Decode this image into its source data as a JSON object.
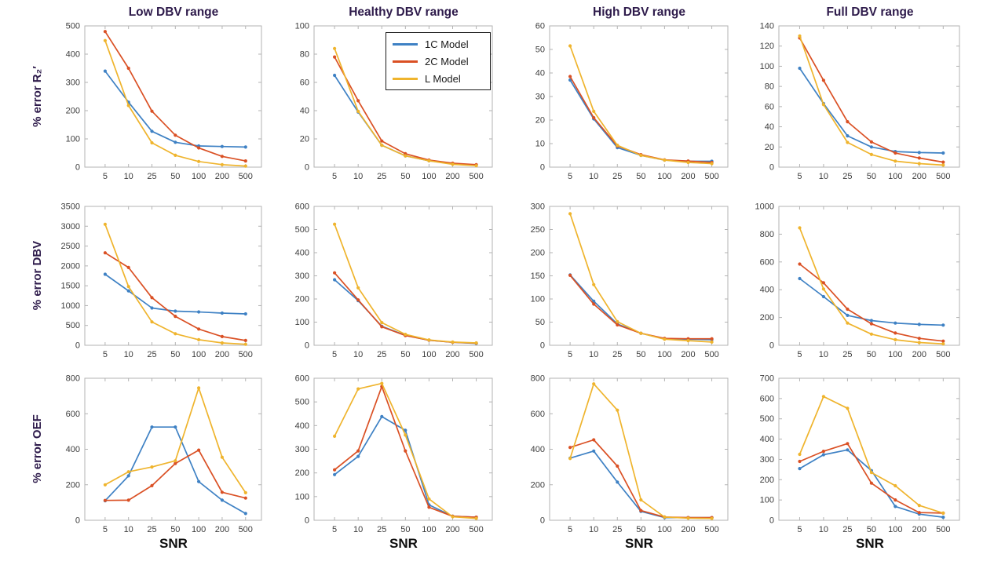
{
  "figure": {
    "background": "#ffffff",
    "title_color": "#2e1b4b",
    "axis_box_color": "#b3b3b3",
    "tick_label_color": "#3d3d3d",
    "xlabel_color": "#0d0d0d"
  },
  "columns": {
    "titles": [
      "Low DBV range",
      "Healthy DBV range",
      "High DBV range",
      "Full DBV range"
    ]
  },
  "rows": {
    "labels": [
      "% error R₂′",
      "% error DBV",
      "% error OEF"
    ]
  },
  "x_axis": {
    "label": "SNR",
    "ticks": [
      5,
      10,
      25,
      50,
      100,
      200,
      500
    ]
  },
  "legend": {
    "items": [
      {
        "label": "1C Model",
        "color": "#3e81c4"
      },
      {
        "label": "2C Model",
        "color": "#da5024"
      },
      {
        "label": "L Model",
        "color": "#efb42d"
      }
    ]
  },
  "chart_data": [
    {
      "type": "line",
      "title": "Low DBV range",
      "ylabel": "% error R₂′",
      "xlabel": "SNR",
      "x": [
        5,
        10,
        25,
        50,
        100,
        200,
        500
      ],
      "ylim": [
        0,
        500
      ],
      "yticks": [
        0,
        100,
        200,
        300,
        400,
        500
      ],
      "series": [
        {
          "name": "1C Model",
          "values": [
            340,
            230,
            127,
            88,
            75,
            73,
            71
          ]
        },
        {
          "name": "2C Model",
          "values": [
            480,
            350,
            198,
            113,
            68,
            38,
            22
          ]
        },
        {
          "name": "L Model",
          "values": [
            448,
            218,
            86,
            42,
            20,
            9,
            4
          ]
        }
      ]
    },
    {
      "type": "line",
      "title": "Healthy DBV range",
      "ylabel": "% error R₂′",
      "xlabel": "SNR",
      "x": [
        5,
        10,
        25,
        50,
        100,
        200,
        500
      ],
      "ylim": [
        0,
        100
      ],
      "yticks": [
        0,
        20,
        40,
        60,
        80,
        100
      ],
      "series": [
        {
          "name": "1C Model",
          "values": [
            65,
            39,
            15.5,
            8,
            4.5,
            2.5,
            1.5
          ]
        },
        {
          "name": "2C Model",
          "values": [
            78,
            47,
            18.5,
            9.5,
            5,
            2.8,
            1.8
          ]
        },
        {
          "name": "L Model",
          "values": [
            84,
            39.5,
            15.5,
            8,
            4.5,
            2,
            1
          ]
        }
      ]
    },
    {
      "type": "line",
      "title": "High DBV range",
      "ylabel": "% error R₂′",
      "xlabel": "SNR",
      "x": [
        5,
        10,
        25,
        50,
        100,
        200,
        500
      ],
      "ylim": [
        0,
        60
      ],
      "yticks": [
        0,
        10,
        20,
        30,
        40,
        50,
        60
      ],
      "series": [
        {
          "name": "1C Model",
          "values": [
            37,
            20.5,
            8.3,
            5,
            3,
            2.5,
            2.5
          ]
        },
        {
          "name": "2C Model",
          "values": [
            38.5,
            21,
            9,
            5.3,
            3.1,
            2.6,
            2
          ]
        },
        {
          "name": "L Model",
          "values": [
            51.5,
            23.7,
            9.3,
            5,
            3,
            2,
            1.5
          ]
        }
      ]
    },
    {
      "type": "line",
      "title": "Full DBV range",
      "ylabel": "% error R₂′",
      "xlabel": "SNR",
      "x": [
        5,
        10,
        25,
        50,
        100,
        200,
        500
      ],
      "ylim": [
        0,
        140
      ],
      "yticks": [
        0,
        20,
        40,
        60,
        80,
        100,
        120,
        140
      ],
      "series": [
        {
          "name": "1C Model",
          "values": [
            98,
            63,
            31,
            20,
            15.5,
            14.5,
            14
          ]
        },
        {
          "name": "2C Model",
          "values": [
            128,
            86,
            45,
            25,
            14,
            9,
            5
          ]
        },
        {
          "name": "L Model",
          "values": [
            130,
            62,
            24.5,
            12.5,
            6,
            3.5,
            2
          ]
        }
      ]
    },
    {
      "type": "line",
      "title": "Low DBV range",
      "ylabel": "% error DBV",
      "xlabel": "SNR",
      "x": [
        5,
        10,
        25,
        50,
        100,
        200,
        500
      ],
      "ylim": [
        0,
        3500
      ],
      "yticks": [
        0,
        500,
        1000,
        1500,
        2000,
        2500,
        3000,
        3500
      ],
      "series": [
        {
          "name": "1C Model",
          "values": [
            1790,
            1370,
            940,
            860,
            840,
            810,
            790
          ]
        },
        {
          "name": "2C Model",
          "values": [
            2330,
            1960,
            1200,
            730,
            410,
            220,
            120
          ]
        },
        {
          "name": "L Model",
          "values": [
            3050,
            1480,
            590,
            290,
            140,
            60,
            25
          ]
        }
      ]
    },
    {
      "type": "line",
      "title": "Healthy DBV range",
      "ylabel": "% error DBV",
      "xlabel": "SNR",
      "x": [
        5,
        10,
        25,
        50,
        100,
        200,
        500
      ],
      "ylim": [
        0,
        600
      ],
      "yticks": [
        0,
        100,
        200,
        300,
        400,
        500,
        600
      ],
      "series": [
        {
          "name": "1C Model",
          "values": [
            283,
            193,
            82,
            43,
            22,
            13,
            8
          ]
        },
        {
          "name": "2C Model",
          "values": [
            313,
            196,
            80,
            42,
            22,
            13,
            9
          ]
        },
        {
          "name": "L Model",
          "values": [
            523,
            248,
            98,
            47,
            23,
            14,
            10
          ]
        }
      ]
    },
    {
      "type": "line",
      "title": "High DBV range",
      "ylabel": "% error DBV",
      "xlabel": "SNR",
      "x": [
        5,
        10,
        25,
        50,
        100,
        200,
        500
      ],
      "ylim": [
        0,
        300
      ],
      "yticks": [
        0,
        50,
        100,
        150,
        200,
        250,
        300
      ],
      "series": [
        {
          "name": "1C Model",
          "values": [
            152,
            95,
            46,
            26,
            14,
            13,
            12
          ]
        },
        {
          "name": "2C Model",
          "values": [
            151,
            89,
            44,
            26,
            15,
            14,
            14
          ]
        },
        {
          "name": "L Model",
          "values": [
            284,
            131,
            51,
            26,
            13,
            10,
            7
          ]
        }
      ]
    },
    {
      "type": "line",
      "title": "Full DBV range",
      "ylabel": "% error DBV",
      "xlabel": "SNR",
      "x": [
        5,
        10,
        25,
        50,
        100,
        200,
        500
      ],
      "ylim": [
        0,
        1000
      ],
      "yticks": [
        0,
        200,
        400,
        600,
        800,
        1000
      ],
      "series": [
        {
          "name": "1C Model",
          "values": [
            480,
            350,
            215,
            178,
            160,
            150,
            145
          ]
        },
        {
          "name": "2C Model",
          "values": [
            585,
            450,
            260,
            155,
            88,
            50,
            30
          ]
        },
        {
          "name": "L Model",
          "values": [
            845,
            405,
            160,
            80,
            40,
            20,
            10
          ]
        }
      ]
    },
    {
      "type": "line",
      "title": "Low DBV range",
      "ylabel": "% error OEF",
      "xlabel": "SNR",
      "x": [
        5,
        10,
        25,
        50,
        100,
        200,
        500
      ],
      "ylim": [
        0,
        800
      ],
      "yticks": [
        0,
        200,
        400,
        600,
        800
      ],
      "series": [
        {
          "name": "1C Model",
          "values": [
            110,
            250,
            525,
            525,
            218,
            113,
            38
          ]
        },
        {
          "name": "2C Model",
          "values": [
            112,
            113,
            195,
            320,
            395,
            158,
            125
          ]
        },
        {
          "name": "L Model",
          "values": [
            200,
            273,
            300,
            335,
            745,
            355,
            155
          ]
        }
      ]
    },
    {
      "type": "line",
      "title": "Healthy DBV range",
      "ylabel": "% error OEF",
      "xlabel": "SNR",
      "x": [
        5,
        10,
        25,
        50,
        100,
        200,
        500
      ],
      "ylim": [
        0,
        600
      ],
      "yticks": [
        0,
        100,
        200,
        300,
        400,
        500,
        600
      ],
      "series": [
        {
          "name": "1C Model",
          "values": [
            193,
            270,
            438,
            380,
            65,
            17,
            13
          ]
        },
        {
          "name": "2C Model",
          "values": [
            213,
            293,
            565,
            293,
            55,
            17,
            13
          ]
        },
        {
          "name": "L Model",
          "values": [
            355,
            555,
            578,
            360,
            90,
            15,
            8
          ]
        }
      ]
    },
    {
      "type": "line",
      "title": "High DBV range",
      "ylabel": "% error OEF",
      "xlabel": "SNR",
      "x": [
        5,
        10,
        25,
        50,
        100,
        200,
        500
      ],
      "ylim": [
        0,
        800
      ],
      "yticks": [
        0,
        200,
        400,
        600,
        800
      ],
      "series": [
        {
          "name": "1C Model",
          "values": [
            350,
            390,
            215,
            50,
            15,
            15,
            15
          ]
        },
        {
          "name": "2C Model",
          "values": [
            410,
            453,
            305,
            55,
            18,
            15,
            15
          ]
        },
        {
          "name": "L Model",
          "values": [
            348,
            768,
            620,
            115,
            18,
            12,
            10
          ]
        }
      ]
    },
    {
      "type": "line",
      "title": "Full DBV range",
      "ylabel": "% error OEF",
      "xlabel": "SNR",
      "x": [
        5,
        10,
        25,
        50,
        100,
        200,
        500
      ],
      "ylim": [
        0,
        700
      ],
      "yticks": [
        0,
        100,
        200,
        300,
        400,
        500,
        600,
        700
      ],
      "series": [
        {
          "name": "1C Model",
          "values": [
            255,
            323,
            347,
            245,
            68,
            30,
            15
          ]
        },
        {
          "name": "2C Model",
          "values": [
            290,
            340,
            378,
            183,
            100,
            38,
            35
          ]
        },
        {
          "name": "L Model",
          "values": [
            325,
            610,
            552,
            235,
            170,
            73,
            35
          ]
        }
      ]
    }
  ]
}
